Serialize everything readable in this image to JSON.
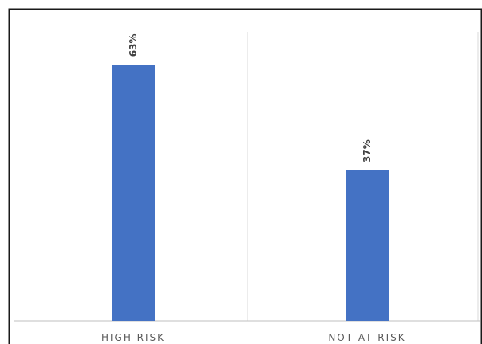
{
  "chart_data": {
    "type": "bar",
    "categories": [
      "HIGH RISK",
      "NOT AT RISK"
    ],
    "values": [
      63,
      37
    ],
    "data_labels": [
      "63%",
      "37%"
    ],
    "ylim": [
      0,
      70
    ],
    "grid": false,
    "legend": "none",
    "colors": {
      "bar": "#4472c4",
      "border": "#1a1a1a",
      "divider": "#d9d9d9",
      "axis": "#bfbfbf",
      "tick_text": "#595959",
      "label_text": "#404040"
    }
  }
}
